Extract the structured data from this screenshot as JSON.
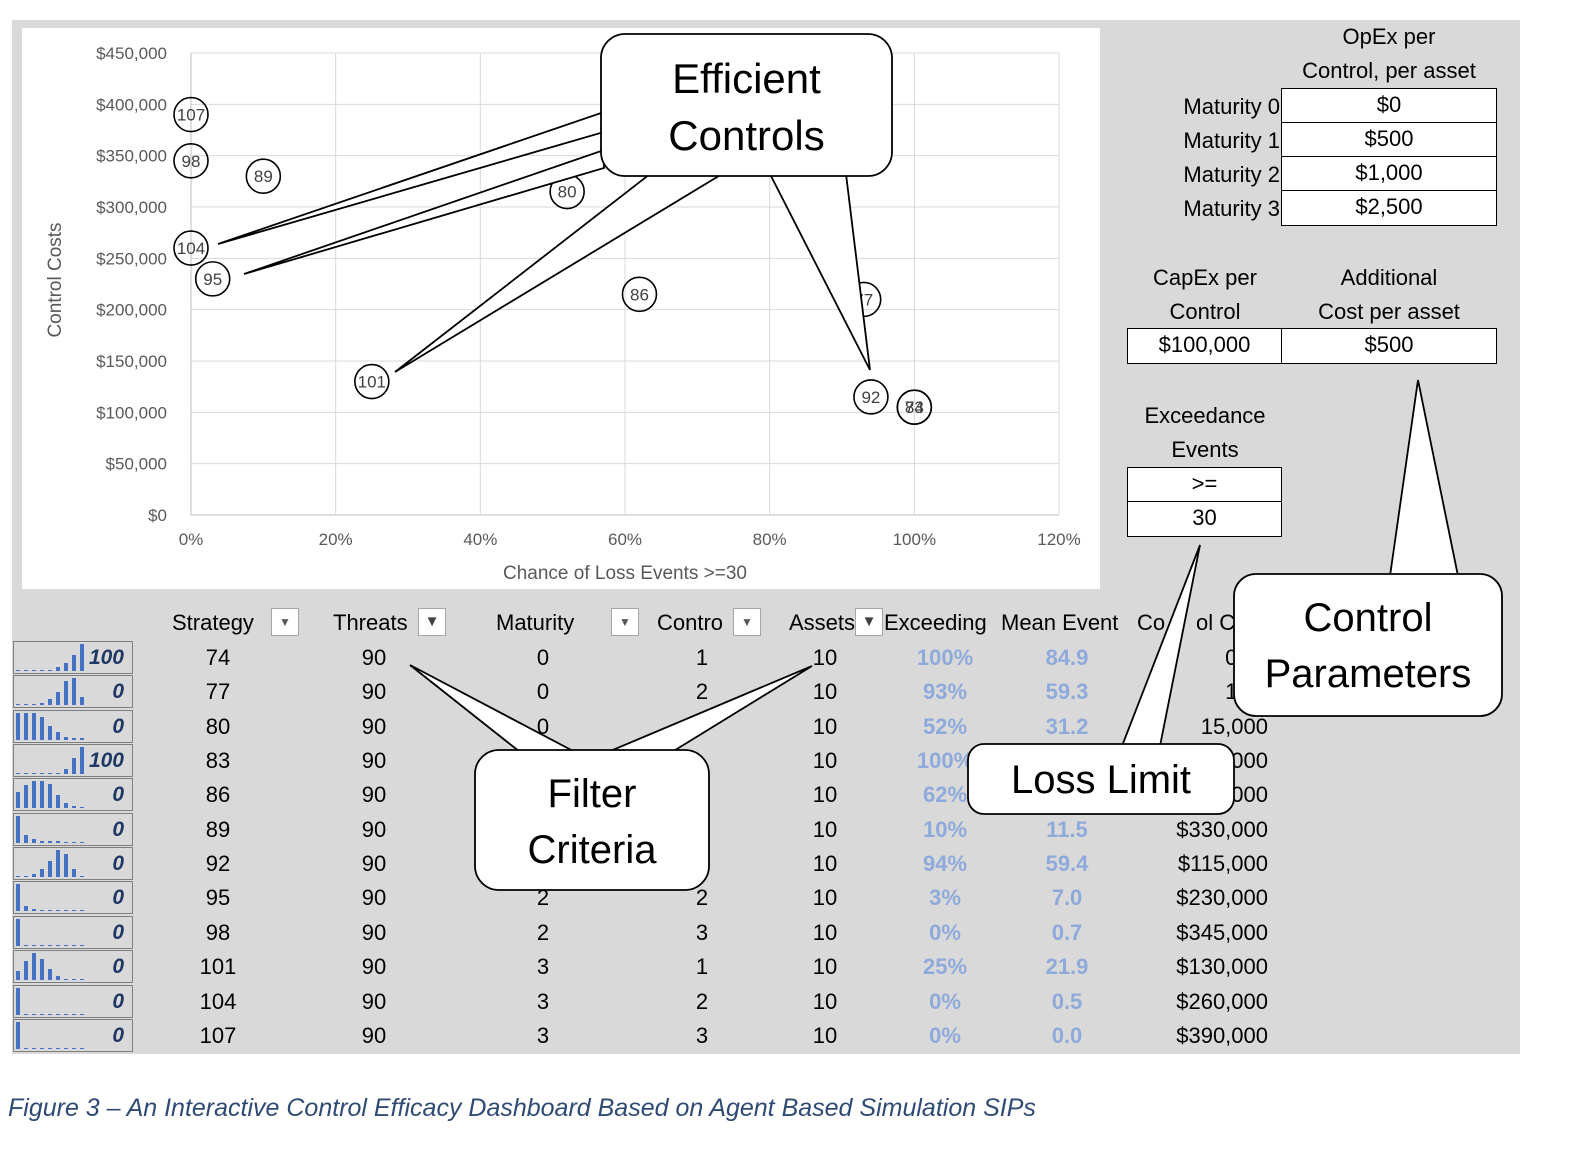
{
  "chart_data": {
    "type": "scatter",
    "xlabel": "Chance of Loss Events >=30",
    "ylabel": "Control Costs",
    "xlim": [
      0,
      1.2
    ],
    "ylim": [
      0,
      450000
    ],
    "x_ticks": [
      "0%",
      "20%",
      "40%",
      "60%",
      "80%",
      "100%",
      "120%"
    ],
    "y_ticks": [
      "$0",
      "$50,000",
      "$100,000",
      "$150,000",
      "$200,000",
      "$250,000",
      "$300,000",
      "$350,000",
      "$400,000",
      "$450,000"
    ],
    "grid": true,
    "points": [
      {
        "label": "107",
        "x": 0.0,
        "y": 390000
      },
      {
        "label": "98",
        "x": 0.0,
        "y": 345000
      },
      {
        "label": "89",
        "x": 0.1,
        "y": 330000
      },
      {
        "label": "80",
        "x": 0.52,
        "y": 315000
      },
      {
        "label": "104",
        "x": 0.0,
        "y": 260000
      },
      {
        "label": "95",
        "x": 0.03,
        "y": 230000
      },
      {
        "label": "86",
        "x": 0.62,
        "y": 215000
      },
      {
        "label": "77",
        "x": 0.93,
        "y": 210000
      },
      {
        "label": "101",
        "x": 0.25,
        "y": 130000
      },
      {
        "label": "92",
        "x": 0.94,
        "y": 115000
      },
      {
        "label": "83",
        "x": 1.0,
        "y": 105000
      },
      {
        "label": "74",
        "x": 1.0,
        "y": 105000
      }
    ]
  },
  "params": {
    "opex_header": [
      "OpEx per",
      "Control, per asset"
    ],
    "maturity_labels": [
      "Maturity 0",
      "Maturity 1",
      "Maturity 2",
      "Maturity 3"
    ],
    "maturity_costs": [
      "$0",
      "$500",
      "$1,000",
      "$2,500"
    ],
    "capex_header": [
      "CapEx per",
      "Control"
    ],
    "capex_value": "$100,000",
    "additional_header": [
      "Additional",
      "Cost per asset"
    ],
    "additional_value": "$500",
    "exceedance_header": [
      "Exceedance",
      "Events"
    ],
    "exceedance_operator": ">=",
    "exceedance_value": "30"
  },
  "table": {
    "headers": [
      "Strategy",
      "Threats",
      "Maturity",
      "Contro",
      "Assets",
      "Exceeding",
      "Mean Event",
      "Co",
      "ol C"
    ],
    "rows": [
      {
        "spark_value": "100",
        "spark_bars": [
          0.05,
          0,
          0.05,
          0,
          0.05,
          0.15,
          0.3,
          0.6,
          1.0
        ],
        "strategy": "74",
        "threats": "90",
        "maturity": "0",
        "control": "1",
        "assets": "10",
        "exceeding": "100%",
        "mean": "84.9",
        "cost": "05,0"
      },
      {
        "spark_value": "0",
        "spark_bars": [
          0.05,
          0,
          0.05,
          0.1,
          0.25,
          0.5,
          0.9,
          1.0,
          0.3
        ],
        "strategy": "77",
        "threats": "90",
        "maturity": "0",
        "control": "2",
        "assets": "10",
        "exceeding": "93%",
        "mean": "59.3",
        "cost": "10,0"
      },
      {
        "spark_value": "0",
        "spark_bars": [
          1.0,
          1.0,
          1.0,
          0.85,
          0.5,
          0.3,
          0.1,
          0.05,
          0.05
        ],
        "strategy": "80",
        "threats": "90",
        "maturity": "0",
        "control": "",
        "assets": "10",
        "exceeding": "52%",
        "mean": "31.2",
        "cost": "15,000"
      },
      {
        "spark_value": "100",
        "spark_bars": [
          0.05,
          0,
          0.05,
          0,
          0.05,
          0.05,
          0.2,
          0.6,
          1.0
        ],
        "strategy": "83",
        "threats": "90",
        "maturity": "",
        "control": "",
        "assets": "10",
        "exceeding": "100%",
        "mean": "",
        "cost": "000"
      },
      {
        "spark_value": "0",
        "spark_bars": [
          0.6,
          0.85,
          1.0,
          1.0,
          0.9,
          0.5,
          0.2,
          0.1,
          0.05
        ],
        "strategy": "86",
        "threats": "90",
        "maturity": "",
        "control": "",
        "assets": "10",
        "exceeding": "62%",
        "mean": "",
        "cost": "000"
      },
      {
        "spark_value": "0",
        "spark_bars": [
          1.0,
          0.3,
          0.15,
          0.05,
          0.05,
          0.05,
          0,
          0,
          0
        ],
        "strategy": "89",
        "threats": "90",
        "maturity": "",
        "control": "",
        "assets": "10",
        "exceeding": "10%",
        "mean": "11.5",
        "cost": "$330,000"
      },
      {
        "spark_value": "0",
        "spark_bars": [
          0.05,
          0.05,
          0.1,
          0.3,
          0.6,
          1.0,
          0.85,
          0.3,
          0.05
        ],
        "strategy": "92",
        "threats": "90",
        "maturity": "",
        "control": "",
        "assets": "10",
        "exceeding": "94%",
        "mean": "59.4",
        "cost": "$115,000"
      },
      {
        "spark_value": "0",
        "spark_bars": [
          1.0,
          0.2,
          0.1,
          0.05,
          0,
          0,
          0,
          0,
          0
        ],
        "strategy": "95",
        "threats": "90",
        "maturity": "2",
        "control": "2",
        "assets": "10",
        "exceeding": "3%",
        "mean": "7.0",
        "cost": "$230,000"
      },
      {
        "spark_value": "0",
        "spark_bars": [
          1.0,
          0,
          0,
          0,
          0,
          0,
          0,
          0,
          0
        ],
        "strategy": "98",
        "threats": "90",
        "maturity": "2",
        "control": "3",
        "assets": "10",
        "exceeding": "0%",
        "mean": "0.7",
        "cost": "$345,000"
      },
      {
        "spark_value": "0",
        "spark_bars": [
          0.35,
          0.7,
          1.0,
          0.8,
          0.4,
          0.15,
          0.05,
          0.05,
          0
        ],
        "strategy": "101",
        "threats": "90",
        "maturity": "3",
        "control": "1",
        "assets": "10",
        "exceeding": "25%",
        "mean": "21.9",
        "cost": "$130,000"
      },
      {
        "spark_value": "0",
        "spark_bars": [
          1.0,
          0,
          0,
          0,
          0,
          0,
          0,
          0,
          0
        ],
        "strategy": "104",
        "threats": "90",
        "maturity": "3",
        "control": "2",
        "assets": "10",
        "exceeding": "0%",
        "mean": "0.5",
        "cost": "$260,000"
      },
      {
        "spark_value": "0",
        "spark_bars": [
          1.0,
          0,
          0,
          0,
          0,
          0,
          0,
          0,
          0
        ],
        "strategy": "107",
        "threats": "90",
        "maturity": "3",
        "control": "3",
        "assets": "10",
        "exceeding": "0%",
        "mean": "0.0",
        "cost": "$390,000"
      }
    ]
  },
  "callouts": {
    "efficient": [
      "Efficient",
      "Controls"
    ],
    "filter": [
      "Filter",
      "Criteria"
    ],
    "loss": "Loss Limit",
    "control": [
      "Control",
      "Parameters"
    ]
  },
  "caption": "Figure 3 – An Interactive Control Efficacy Dashboard Based on Agent Based Simulation SIPs",
  "colors": {
    "bar_blue": "#4472c4",
    "metric_blue": "#8eaadb",
    "caption_blue": "#2f4a74",
    "panel_gray": "#d9d9d9"
  }
}
